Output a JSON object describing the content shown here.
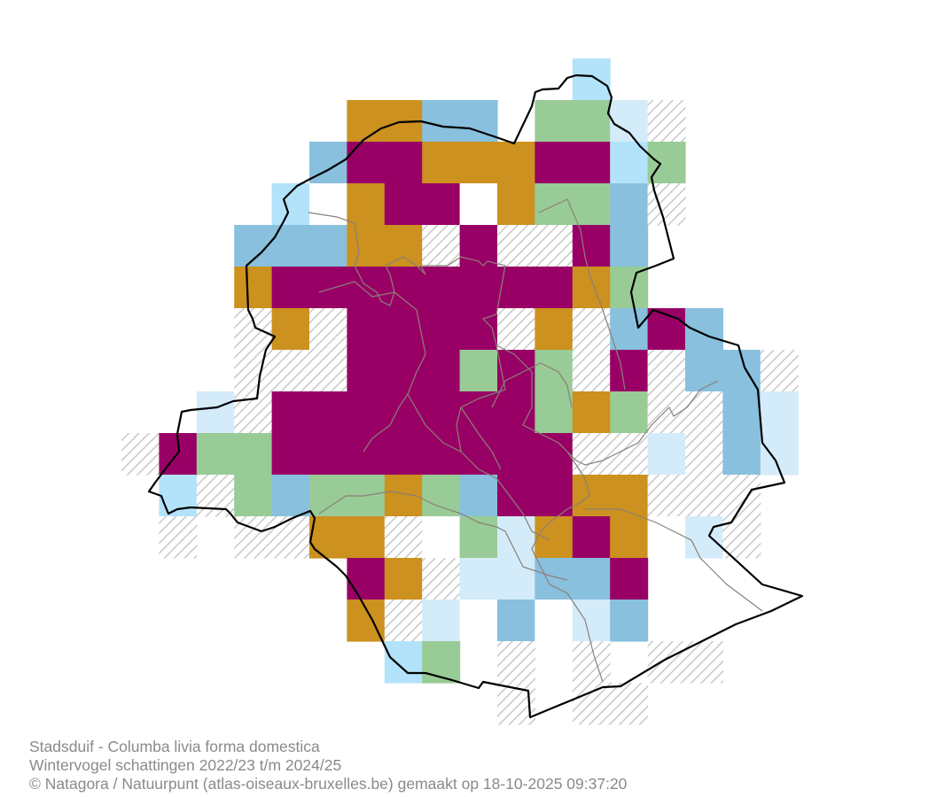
{
  "map": {
    "type": "grid-map",
    "legend_colors": {
      "P": "#990066",
      "O": "#cc911e",
      "B": "#88c0de",
      "L": "#b3e3fa",
      "V": "#d4ebf9",
      "G": "#99cb96",
      "W": "#ffffff",
      "H": "hatched"
    },
    "grid_rows": [
      "............L.....",
      "......OOBB.GGVH...",
      ".....BPPOOOPPLG...",
      "....LWOPPWOGGBH...",
      "...BBBOOHPHHPB....",
      "...OPPPPPPPPOG....",
      "...HOHPPPPHOHBPB..",
      "...HHHPPPGPGHPHBBH",
      "..VHPPPPPPPGOGHHBV",
      "HPGGPPPPPPPPHHVHBV",
      ".LHGBGGOGBPPOOHHH.",
      ".H.HHOOHWGVOPOWVH.",
      "......POHVVBBP....",
      "......OHVWBWVB....",
      ".......LG.H.H.HH..",
      "..........H.HH...."
    ]
  },
  "caption": {
    "line1": "Stadsduif - Columba livia forma domestica",
    "line2": "Wintervogel schattingen 2022/23 t/m 2024/25",
    "line3": "© Natagora / Natuurpunt (atlas-oiseaux-bruxelles.be) gemaakt op 18-10-2025 09:37:20"
  }
}
